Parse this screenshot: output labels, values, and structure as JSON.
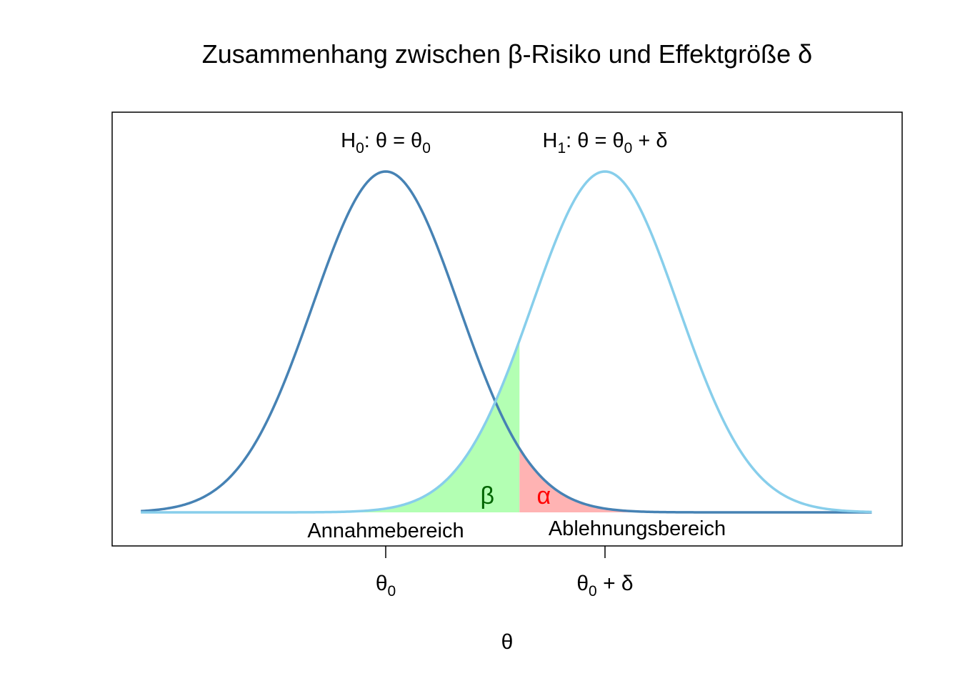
{
  "chart_data": {
    "type": "area",
    "title": "Zusammenhang zwischen β-Risiko und Effektgröße δ",
    "xlabel": "θ",
    "ylabel": "",
    "x_ticks": [
      {
        "x": 0,
        "label": "θ",
        "sub": "0",
        "suffix": ""
      },
      {
        "x": 3,
        "label": "θ",
        "sub": "0",
        "suffix": " + δ"
      }
    ],
    "xlim": [
      -3.35,
      6.65
    ],
    "ylim": [
      0,
      0.4
    ],
    "critical_value": 1.83,
    "series": [
      {
        "key": "h0",
        "mean": 0,
        "sd": 1,
        "color": "#4682b4",
        "label": {
          "main": "H",
          "sub": "0",
          "rest": ":  θ = θ",
          "sub2": "0",
          "rest2": ""
        }
      },
      {
        "key": "h1",
        "mean": 3,
        "sd": 1,
        "color": "#87ceeb",
        "label": {
          "main": "H",
          "sub": "1",
          "rest": ":  θ = θ",
          "sub2": "0",
          "rest2": " + δ"
        }
      }
    ],
    "regions": {
      "beta": {
        "symbol": "β",
        "fill": "#b3ffb3",
        "text_color": "#006400"
      },
      "alpha": {
        "symbol": "α",
        "fill": "#ffb3b3",
        "text_color": "#ff0000"
      }
    },
    "region_labels": {
      "acceptance": "Annahmebereich",
      "rejection": "Ablehnungsbereich"
    }
  }
}
